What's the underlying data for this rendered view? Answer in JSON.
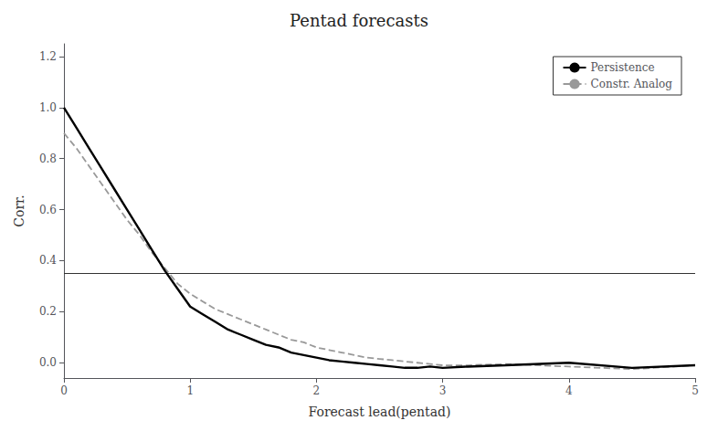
{
  "chart_data": {
    "type": "line",
    "title": "Pentad forecasts",
    "xlabel": "Forecast lead(pentad)",
    "ylabel": "Corr.",
    "xlim": [
      0,
      5
    ],
    "ylim": [
      -0.06,
      1.25
    ],
    "xticks": [
      0,
      1,
      2,
      3,
      4,
      5
    ],
    "yticks": [
      {
        "value": 0,
        "label": "0.0"
      },
      0.2,
      0.4,
      0.6,
      0.8,
      {
        "value": 1,
        "label": "1.0"
      },
      1.2
    ],
    "grid": false,
    "legend": "upper right",
    "x": [
      0.0,
      0.1,
      0.2,
      0.3,
      0.4,
      0.5,
      0.6,
      0.7,
      0.8,
      0.9,
      1.0,
      1.1,
      1.2,
      1.3,
      1.4,
      1.5,
      1.6,
      1.7,
      1.8,
      1.9,
      2.0,
      2.1,
      2.2,
      2.3,
      2.4,
      2.5,
      2.6,
      2.7,
      2.8,
      2.9,
      3.0,
      3.2,
      3.5,
      4.0,
      4.5,
      5.0
    ],
    "series": [
      {
        "name": "Persistence",
        "color": "#000000",
        "line_style": "solid",
        "values": [
          1.0,
          0.92,
          0.84,
          0.76,
          0.68,
          0.6,
          0.52,
          0.44,
          0.36,
          0.29,
          0.22,
          0.19,
          0.16,
          0.13,
          0.11,
          0.09,
          0.07,
          0.06,
          0.04,
          0.03,
          0.02,
          0.01,
          0.005,
          0.0,
          -0.005,
          -0.01,
          -0.015,
          -0.02,
          -0.02,
          -0.015,
          -0.02,
          -0.015,
          -0.01,
          0.0,
          -0.02,
          -0.01
        ]
      },
      {
        "name": "Constr. Analog",
        "color": "#999999",
        "line_style": "dashed",
        "values": [
          0.9,
          0.84,
          0.77,
          0.7,
          0.63,
          0.56,
          0.5,
          0.43,
          0.37,
          0.31,
          0.27,
          0.24,
          0.21,
          0.19,
          0.17,
          0.15,
          0.13,
          0.11,
          0.09,
          0.08,
          0.06,
          0.05,
          0.04,
          0.03,
          0.02,
          0.015,
          0.01,
          0.005,
          0.0,
          -0.005,
          -0.01,
          -0.01,
          -0.005,
          -0.015,
          -0.025,
          -0.01
        ]
      }
    ],
    "hline": {
      "y": 0.348,
      "color": "#333333"
    }
  }
}
